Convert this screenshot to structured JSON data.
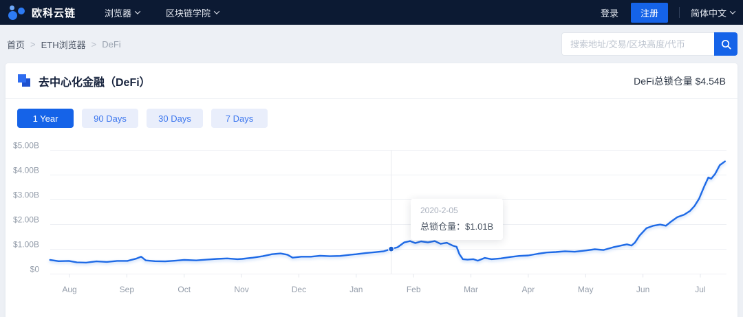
{
  "navbar": {
    "brand": "欧科云链",
    "items": [
      {
        "label": "浏览器"
      },
      {
        "label": "区块链学院"
      }
    ],
    "login": "登录",
    "register": "注册",
    "language": "简体中文"
  },
  "breadcrumb": {
    "items": [
      "首页",
      "ETH浏览器",
      "DeFi"
    ],
    "separator": ">"
  },
  "search": {
    "placeholder": "搜索地址/交易/区块高度/代币"
  },
  "page": {
    "title": "去中心化金融（DeFi）",
    "tvl_summary": "DeFi总锁仓量 $4.54B"
  },
  "range_buttons": [
    {
      "label": "1 Year",
      "active": true
    },
    {
      "label": "90 Days",
      "active": false
    },
    {
      "label": "30 Days",
      "active": false
    },
    {
      "label": "7 Days",
      "active": false
    }
  ],
  "tooltip": {
    "date": "2020-2-05",
    "label": "总锁仓量：",
    "value": "$1.01B"
  },
  "colors": {
    "brand_blue": "#1563e8",
    "line_blue": "#1e6ae6",
    "marker_blue": "#1a5fd0",
    "grid": "#eef0f4",
    "crosshair": "#e7e9ee",
    "axis_label": "#949daa",
    "navbar_bg": "#0c1a33"
  },
  "chart_data": {
    "type": "line",
    "title": "DeFi Total Value Locked - 1 Year",
    "x_tick_labels": [
      "Aug",
      "Sep",
      "Oct",
      "Nov",
      "Dec",
      "Jan",
      "Feb",
      "Mar",
      "Apr",
      "May",
      "Jun",
      "Jul"
    ],
    "y_tick_labels": [
      "$0",
      "$1.00B",
      "$2.00B",
      "$3.00B",
      "$4.00B",
      "$5.00B"
    ],
    "ylim": [
      0,
      5
    ],
    "y_unit": "USD billions",
    "x_unit": "months_from_aug_tick",
    "grid": true,
    "legend": false,
    "series": [
      {
        "name": "总锁仓量",
        "color": "#1e6ae6",
        "points": [
          [
            -0.34,
            0.57
          ],
          [
            -0.19,
            0.52
          ],
          [
            -0.01,
            0.53
          ],
          [
            0.13,
            0.47
          ],
          [
            0.29,
            0.46
          ],
          [
            0.47,
            0.51
          ],
          [
            0.65,
            0.49
          ],
          [
            0.83,
            0.53
          ],
          [
            1.01,
            0.53
          ],
          [
            1.16,
            0.62
          ],
          [
            1.25,
            0.7
          ],
          [
            1.33,
            0.55
          ],
          [
            1.49,
            0.52
          ],
          [
            1.67,
            0.51
          ],
          [
            1.85,
            0.54
          ],
          [
            2.0,
            0.57
          ],
          [
            2.21,
            0.55
          ],
          [
            2.39,
            0.58
          ],
          [
            2.57,
            0.61
          ],
          [
            2.75,
            0.63
          ],
          [
            2.93,
            0.6
          ],
          [
            3.01,
            0.61
          ],
          [
            3.2,
            0.66
          ],
          [
            3.37,
            0.72
          ],
          [
            3.53,
            0.8
          ],
          [
            3.68,
            0.83
          ],
          [
            3.8,
            0.78
          ],
          [
            3.89,
            0.66
          ],
          [
            4.04,
            0.7
          ],
          [
            4.21,
            0.7
          ],
          [
            4.37,
            0.74
          ],
          [
            4.54,
            0.72
          ],
          [
            4.72,
            0.73
          ],
          [
            4.9,
            0.78
          ],
          [
            5.0,
            0.8
          ],
          [
            5.17,
            0.85
          ],
          [
            5.32,
            0.88
          ],
          [
            5.48,
            0.92
          ],
          [
            5.61,
            1.01
          ],
          [
            5.72,
            1.08
          ],
          [
            5.84,
            1.28
          ],
          [
            5.94,
            1.33
          ],
          [
            6.03,
            1.25
          ],
          [
            6.13,
            1.32
          ],
          [
            6.25,
            1.28
          ],
          [
            6.37,
            1.33
          ],
          [
            6.47,
            1.22
          ],
          [
            6.58,
            1.26
          ],
          [
            6.68,
            1.15
          ],
          [
            6.75,
            1.1
          ],
          [
            6.8,
            0.8
          ],
          [
            6.86,
            0.6
          ],
          [
            6.94,
            0.58
          ],
          [
            7.04,
            0.6
          ],
          [
            7.12,
            0.54
          ],
          [
            7.24,
            0.65
          ],
          [
            7.36,
            0.6
          ],
          [
            7.52,
            0.63
          ],
          [
            7.69,
            0.69
          ],
          [
            7.84,
            0.73
          ],
          [
            8.0,
            0.75
          ],
          [
            8.17,
            0.82
          ],
          [
            8.32,
            0.87
          ],
          [
            8.48,
            0.89
          ],
          [
            8.64,
            0.92
          ],
          [
            8.81,
            0.9
          ],
          [
            9.0,
            0.95
          ],
          [
            9.16,
            1.0
          ],
          [
            9.31,
            0.97
          ],
          [
            9.48,
            1.08
          ],
          [
            9.62,
            1.15
          ],
          [
            9.72,
            1.2
          ],
          [
            9.8,
            1.15
          ],
          [
            9.86,
            1.27
          ],
          [
            9.94,
            1.55
          ],
          [
            10.06,
            1.85
          ],
          [
            10.18,
            1.95
          ],
          [
            10.3,
            2.0
          ],
          [
            10.4,
            1.95
          ],
          [
            10.48,
            2.1
          ],
          [
            10.6,
            2.3
          ],
          [
            10.72,
            2.4
          ],
          [
            10.82,
            2.55
          ],
          [
            10.9,
            2.75
          ],
          [
            10.98,
            3.05
          ],
          [
            11.07,
            3.55
          ],
          [
            11.14,
            3.9
          ],
          [
            11.19,
            3.85
          ],
          [
            11.26,
            4.05
          ],
          [
            11.34,
            4.4
          ],
          [
            11.43,
            4.55
          ]
        ]
      }
    ],
    "highlight_point": {
      "x_months_from_aug": 5.61,
      "value": 1.01,
      "date": "2020-2-05",
      "label": "总锁仓量",
      "display_value": "$1.01B"
    }
  }
}
